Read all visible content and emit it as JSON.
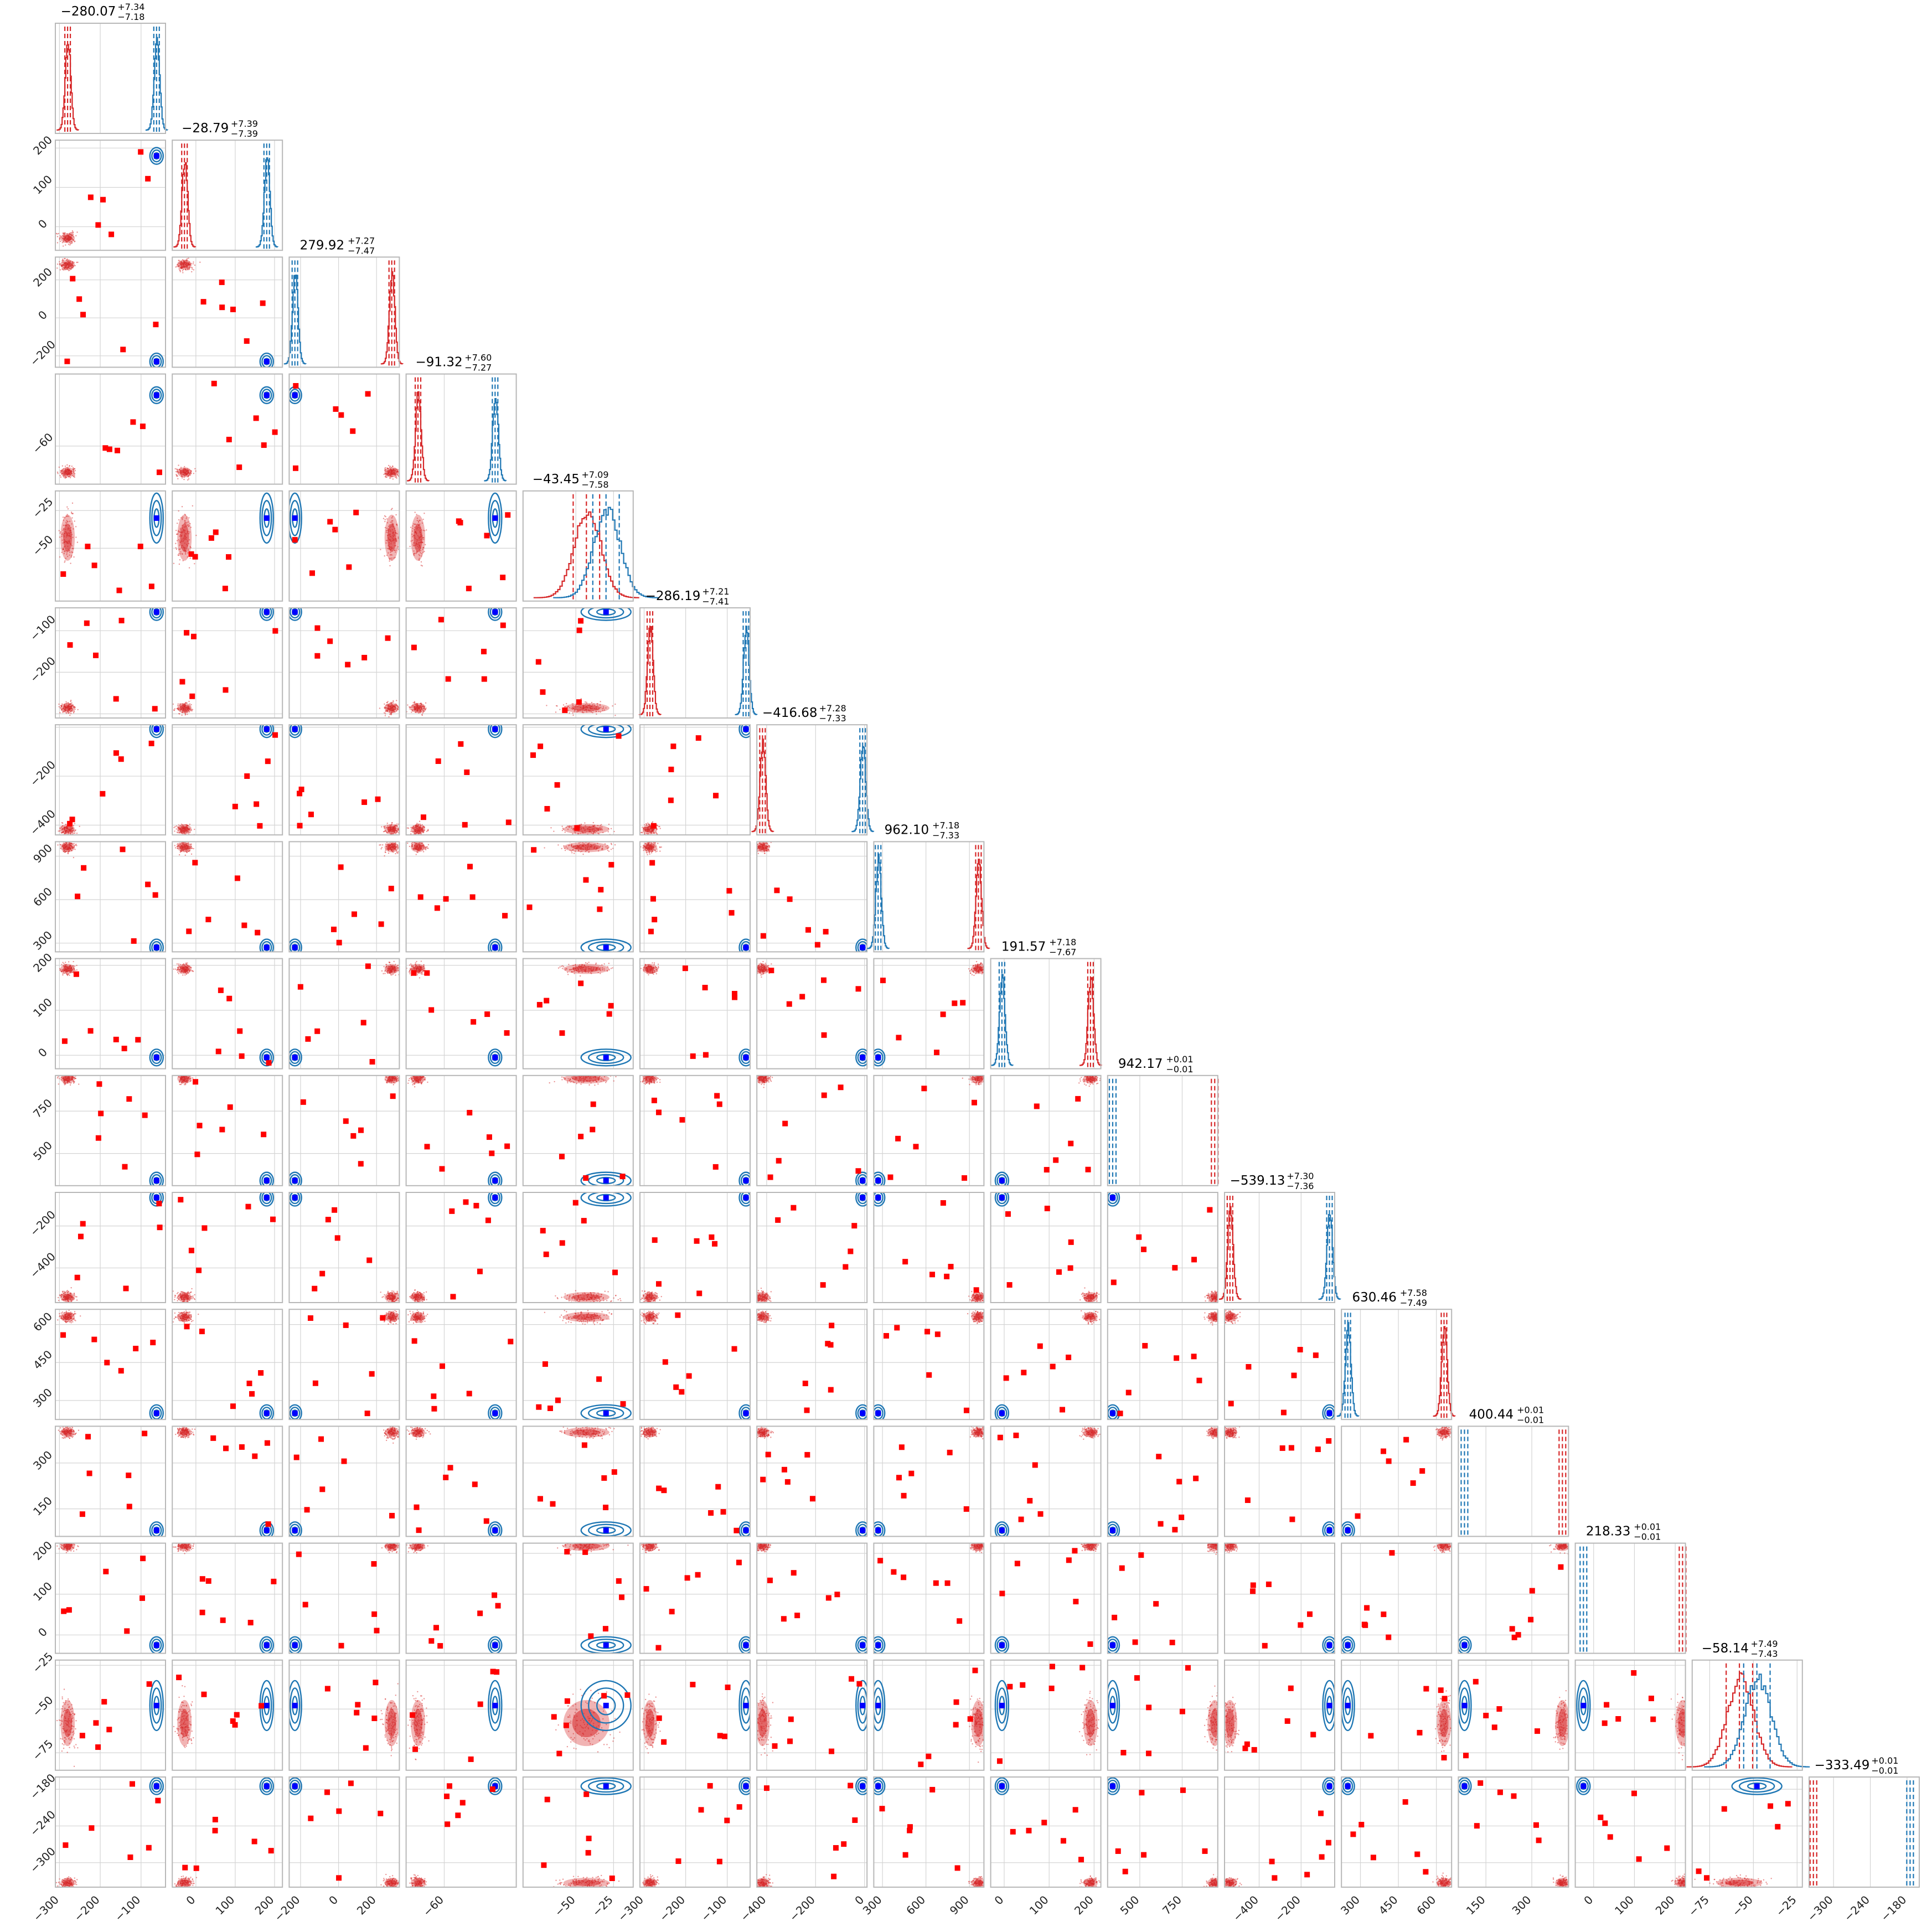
{
  "chart_data": {
    "type": "scatter",
    "subtype": "corner-plot",
    "n_params": 16,
    "colors": {
      "sample_a": "#d62728",
      "sample_b": "#1f77b4",
      "truth_marker_b": "#0000ff",
      "outlier_marker": "#ff0000"
    },
    "grid": true,
    "titles": [
      "−280.07^{+7.34}_{−7.18}",
      "−28.79^{+7.39}_{−7.39}",
      "279.92^{+7.27}_{−7.47}",
      "−91.32^{+7.60}_{−7.27}",
      "−43.45^{+7.09}_{−7.58}",
      "−286.19^{+7.21}_{−7.41}",
      "−416.68^{+7.28}_{−7.33}",
      "962.10^{+7.18}_{−7.33}",
      "191.57^{+7.18}_{−7.67}",
      "942.17^{+0.01}_{−0.01}",
      "−539.13^{+7.30}_{−7.36}",
      "630.46^{+7.58}_{−7.49}",
      "400.44^{+0.01}_{−0.01}",
      "218.33^{+0.01}_{−0.01}",
      "−58.14^{+7.49}_{−7.43}",
      "−333.49^{+0.01}_{−0.01}"
    ],
    "params": [
      {
        "range": [
          -310,
          -40
        ],
        "red": -280,
        "blue": -62,
        "ticks": [
          -300,
          -200,
          -100
        ],
        "tick_labels": [
          "−300",
          "−200",
          "−100"
        ]
      },
      {
        "range": [
          -60,
          220
        ],
        "red": -29,
        "blue": 180,
        "ticks": [
          0,
          100,
          200
        ],
        "tick_labels": [
          "0",
          "100",
          "200"
        ]
      },
      {
        "range": [
          -260,
          320
        ],
        "red": 280,
        "blue": -230,
        "ticks": [
          -200,
          0,
          200
        ],
        "tick_labels": [
          "−200",
          "0",
          "200"
        ]
      },
      {
        "range": [
          -105,
          25
        ],
        "red": -91,
        "blue": 0,
        "ticks": [
          -60
        ],
        "tick_labels": [
          "−60"
        ]
      },
      {
        "range": [
          -85,
          -12
        ],
        "red": -43,
        "blue": -30,
        "ticks": [
          -50,
          -25
        ],
        "tick_labels": [
          "−50",
          "−25"
        ]
      },
      {
        "range": [
          -310,
          -45
        ],
        "red": -286,
        "blue": -55,
        "ticks": [
          -300,
          -200,
          -100
        ],
        "tick_labels": [
          "−300",
          "−200",
          "−100"
        ]
      },
      {
        "range": [
          -440,
          10
        ],
        "red": -417,
        "blue": -8,
        "ticks": [
          -400,
          -200,
          0
        ],
        "tick_labels": [
          "−400",
          "−200",
          "0"
        ]
      },
      {
        "range": [
          240,
          1000
        ],
        "red": 962,
        "blue": 270,
        "ticks": [
          300,
          600,
          900
        ],
        "tick_labels": [
          "300",
          "600",
          "900"
        ]
      },
      {
        "range": [
          -30,
          215
        ],
        "red": 192,
        "blue": -5,
        "ticks": [
          0,
          100,
          200
        ],
        "tick_labels": [
          "0",
          "100",
          "200"
        ]
      },
      {
        "range": [
          310,
          960
        ],
        "red": 942,
        "blue": 340,
        "ticks": [
          500,
          750
        ],
        "tick_labels": [
          "500",
          "750"
        ]
      },
      {
        "range": [
          -565,
          -40
        ],
        "red": -539,
        "blue": -65,
        "ticks": [
          -400,
          -200
        ],
        "tick_labels": [
          "−400",
          "−200"
        ]
      },
      {
        "range": [
          225,
          660
        ],
        "red": 630,
        "blue": 250,
        "ticks": [
          300,
          450,
          600
        ],
        "tick_labels": [
          "300",
          "450",
          "600"
        ]
      },
      {
        "range": [
          60,
          420
        ],
        "red": 400,
        "blue": 80,
        "ticks": [
          150,
          300
        ],
        "tick_labels": [
          "150",
          "300"
        ]
      },
      {
        "range": [
          -45,
          225
        ],
        "red": 218,
        "blue": -25,
        "ticks": [
          0,
          100,
          200
        ],
        "tick_labels": [
          "0",
          "100",
          "200"
        ]
      },
      {
        "range": [
          -85,
          -22
        ],
        "red": -58,
        "blue": -48,
        "ticks": [
          -75,
          -50,
          -25
        ],
        "tick_labels": [
          "−75",
          "−50",
          "−25"
        ]
      },
      {
        "range": [
          -340,
          -160
        ],
        "red": -333,
        "blue": -175,
        "ticks": [
          -300,
          -240,
          -180
        ],
        "tick_labels": [
          "−300",
          "−240",
          "−180"
        ]
      }
    ]
  }
}
